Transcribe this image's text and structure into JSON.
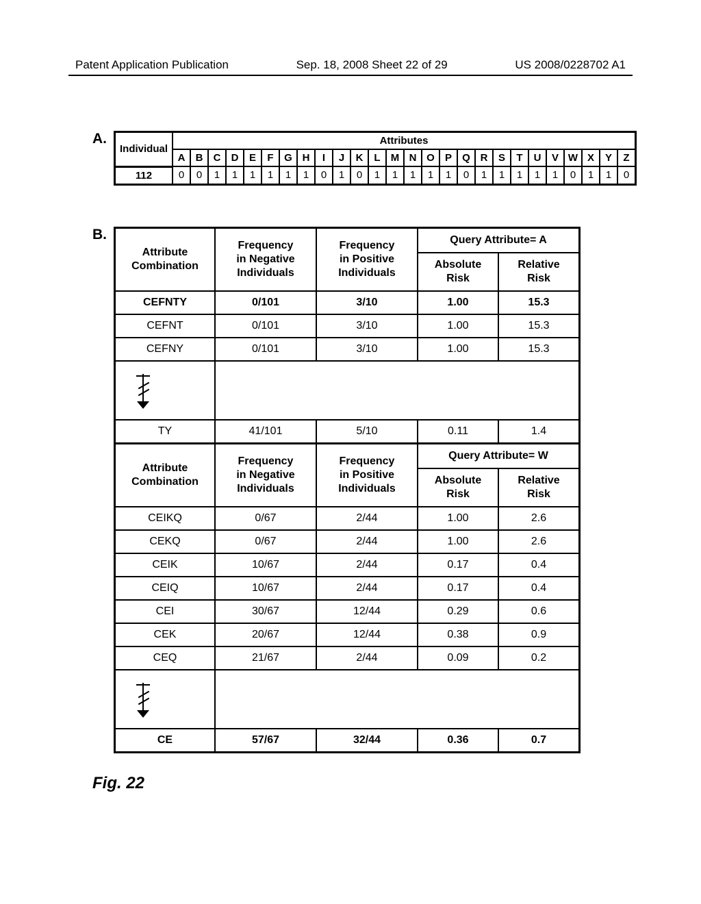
{
  "header": {
    "left": "Patent Application Publication",
    "center": "Sep. 18, 2008  Sheet 22 of 29",
    "right": "US 2008/0228702 A1"
  },
  "colors": {
    "text": "#000000",
    "background": "#ffffff",
    "border": "#000000"
  },
  "sectionA": {
    "label": "A.",
    "row_head": "Individual",
    "attr_title": "Attributes",
    "columns": [
      "A",
      "B",
      "C",
      "D",
      "E",
      "F",
      "G",
      "H",
      "I",
      "J",
      "K",
      "L",
      "M",
      "N",
      "O",
      "P",
      "Q",
      "R",
      "S",
      "T",
      "U",
      "V",
      "W",
      "X",
      "Y",
      "Z"
    ],
    "row_id": "112",
    "values": [
      "0",
      "0",
      "1",
      "1",
      "1",
      "1",
      "1",
      "1",
      "0",
      "1",
      "0",
      "1",
      "1",
      "1",
      "1",
      "1",
      "0",
      "1",
      "1",
      "1",
      "1",
      "1",
      "0",
      "1",
      "1",
      "0"
    ]
  },
  "sectionB": {
    "label": "B.",
    "head": {
      "combo": "Attribute\nCombination",
      "neg": "Frequency\nin Negative\nIndividuals",
      "pos": "Frequency\nin Positive\nIndividuals",
      "abs": "Absolute\nRisk",
      "rel": "Relative\nRisk"
    },
    "groupA": {
      "query_title": "Query Attribute= A",
      "rows": [
        {
          "combo": "CEFNTY",
          "bold": true,
          "neg": "0/101",
          "pos": "3/10",
          "abs": "1.00",
          "rel": "15.3"
        },
        {
          "combo": "CEFNT",
          "neg": "0/101",
          "pos": "3/10",
          "abs": "1.00",
          "rel": "15.3"
        },
        {
          "combo": "CEFNY",
          "neg": "0/101",
          "pos": "3/10",
          "abs": "1.00",
          "rel": "15.3"
        }
      ],
      "tail": {
        "combo": "TY",
        "neg": "41/101",
        "pos": "5/10",
        "abs": "0.11",
        "rel": "1.4"
      }
    },
    "groupW": {
      "query_title": "Query Attribute= W",
      "rows": [
        {
          "combo": "CEIKQ",
          "neg": "0/67",
          "pos": "2/44",
          "abs": "1.00",
          "rel": "2.6"
        },
        {
          "combo": "CEKQ",
          "neg": "0/67",
          "pos": "2/44",
          "abs": "1.00",
          "rel": "2.6"
        },
        {
          "combo": "CEIK",
          "neg": "10/67",
          "pos": "2/44",
          "abs": "0.17",
          "rel": "0.4"
        },
        {
          "combo": "CEIQ",
          "neg": "10/67",
          "pos": "2/44",
          "abs": "0.17",
          "rel": "0.4"
        },
        {
          "combo": "CEI",
          "neg": "30/67",
          "pos": "12/44",
          "abs": "0.29",
          "rel": "0.6"
        },
        {
          "combo": "CEK",
          "neg": "20/67",
          "pos": "12/44",
          "abs": "0.38",
          "rel": "0.9"
        },
        {
          "combo": "CEQ",
          "neg": "21/67",
          "pos": "2/44",
          "abs": "0.09",
          "rel": "0.2"
        }
      ],
      "tail": {
        "combo": "CE",
        "bold": true,
        "neg": "57/67",
        "pos": "32/44",
        "abs": "0.36",
        "rel": "0.7"
      }
    }
  },
  "figure_label": "Fig.  22"
}
